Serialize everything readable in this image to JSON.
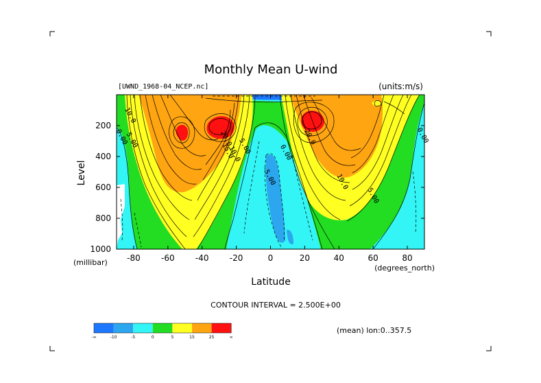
{
  "chart_data": {
    "type": "contour",
    "title": "Monthly Mean U-wind",
    "dataset_label": "[UWND_1968-04_NCEP.nc]",
    "units_label": "(units:m/s)",
    "xlabel": "Latitude",
    "ylabel": "Level",
    "x_units": "(degrees_north)",
    "y_units": "(millibar)",
    "xlim": [
      -90,
      90
    ],
    "ylim": [
      1000,
      0
    ],
    "x_ticks": [
      "-80",
      "-60",
      "-40",
      "-20",
      "0",
      "20",
      "40",
      "60",
      "80"
    ],
    "x_tick_values": [
      -80,
      -60,
      -40,
      -20,
      0,
      20,
      40,
      60,
      80
    ],
    "y_ticks": [
      "200",
      "400",
      "600",
      "800",
      "1000"
    ],
    "y_tick_values": [
      200,
      400,
      600,
      800,
      1000
    ],
    "contour_interval_text": "CONTOUR INTERVAL = 2.500E+00",
    "mean_note": "(mean) lon:0..357.5",
    "contour_labels": [
      {
        "text": "10.0",
        "lat": -83,
        "lev": 140
      },
      {
        "text": "0.00",
        "lat": -88,
        "lev": 280
      },
      {
        "text": "5.00",
        "lat": -82,
        "lev": 300
      },
      {
        "text": "20.0",
        "lat": -27,
        "lev": 290
      },
      {
        "text": "15.0",
        "lat": -26,
        "lev": 370
      },
      {
        "text": "10.0",
        "lat": -22,
        "lev": 390
      },
      {
        "text": "5.00",
        "lat": -16,
        "lev": 340
      },
      {
        "text": "-5.00",
        "lat": -2,
        "lev": 530
      },
      {
        "text": "0.00",
        "lat": 8,
        "lev": 380
      },
      {
        "text": "20.0",
        "lat": 22,
        "lev": 280
      },
      {
        "text": "10.0",
        "lat": 41,
        "lev": 570
      },
      {
        "text": "5.00",
        "lat": 59,
        "lev": 660
      },
      {
        "text": "0.00",
        "lat": 88,
        "lev": 270
      }
    ],
    "colorbar": {
      "colors": [
        "#1e78ff",
        "#2ca6ee",
        "#33f5f5",
        "#22dd22",
        "#ffff22",
        "#ffa511",
        "#ff1111"
      ],
      "labels": [
        "-∞",
        "-10",
        "-5",
        "0",
        "5",
        "15",
        "25",
        "∞"
      ]
    },
    "jets": [
      {
        "lat": -30,
        "lev": 200,
        "peak": 28
      },
      {
        "lat": -53,
        "lev": 250,
        "peak": 27
      },
      {
        "lat": 25,
        "lev": 180,
        "peak": 30
      }
    ]
  }
}
